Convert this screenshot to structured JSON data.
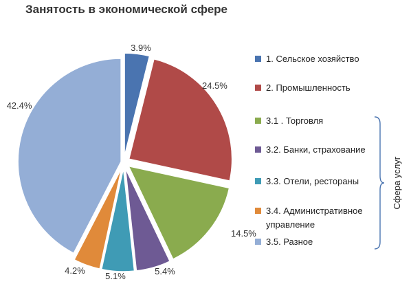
{
  "chart_data": {
    "type": "pie",
    "title": "Занятость в экономической сфере",
    "slices": [
      {
        "label": "1. Сельское хозяйство",
        "value": 3.9,
        "display": "3.9%",
        "color": "#4a74b0"
      },
      {
        "label": "2. Промышленность",
        "value": 24.5,
        "display": "24.5%",
        "color": "#b04a48"
      },
      {
        "label": "3.1 . Торговля",
        "value": 14.5,
        "display": "14.5%",
        "color": "#8aab4e"
      },
      {
        "label": "3.2. Банки, страхование",
        "value": 5.4,
        "display": "5.4%",
        "color": "#6e5a94"
      },
      {
        "label": "3.3. Отели, рестораны",
        "value": 5.1,
        "display": "5.1%",
        "color": "#3f9bb5"
      },
      {
        "label": "3.4. Административное управление",
        "value": 4.2,
        "display": "4.2%",
        "color": "#e08a3a"
      },
      {
        "label": "3.5. Разное",
        "value": 42.4,
        "display": "42.4%",
        "color": "#94aed6"
      }
    ],
    "legend": {
      "placement": "right",
      "lines": [
        [
          "1. Сельское хозяйство"
        ],
        [
          "2. Промышленность"
        ],
        [
          "3.1 . Торговля"
        ],
        [
          "3.2. Банки, страхование"
        ],
        [
          "3.3. Отели, рестораны"
        ],
        [
          "3.4. Административное",
          "управление"
        ],
        [
          "3.5. Разное"
        ]
      ]
    },
    "bracket_label": "Сфера услуг",
    "bracket_color": "#4a74b0"
  }
}
